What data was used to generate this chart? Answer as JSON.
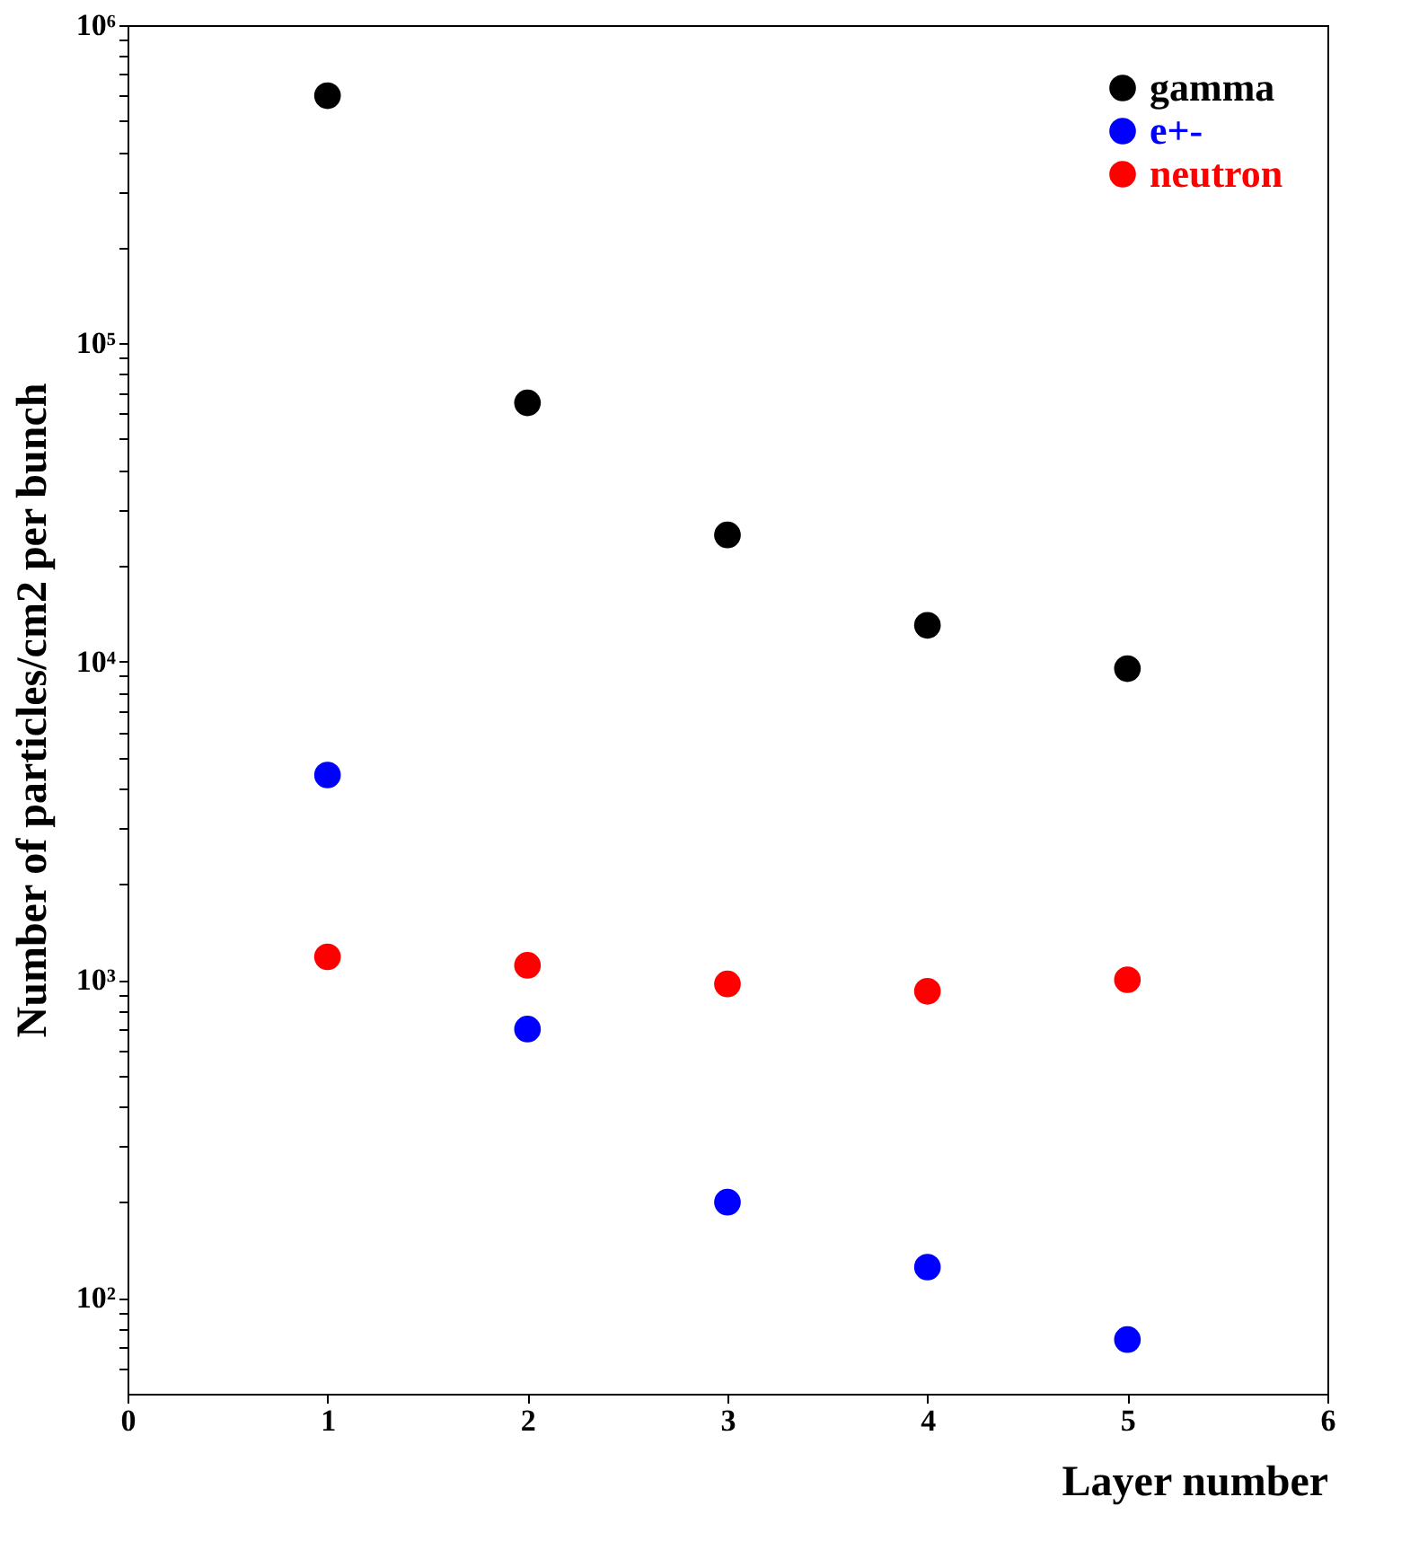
{
  "chart_data": {
    "type": "scatter",
    "xlabel": "Layer number",
    "ylabel": "Number of particles/cm2 per bunch",
    "x": [
      1,
      2,
      3,
      4,
      5
    ],
    "series": [
      {
        "name": "gamma",
        "color": "#000000",
        "values": [
          600000,
          65000,
          25000,
          13000,
          9500
        ]
      },
      {
        "name": "e+-",
        "color": "#0000ff",
        "values": [
          4400,
          700,
          200,
          125,
          74
        ]
      },
      {
        "name": "neutron",
        "color": "#ff0000",
        "values": [
          1180,
          1110,
          970,
          920,
          1000
        ]
      }
    ],
    "log": "y",
    "xlim": [
      0,
      6
    ],
    "xticks": [
      0,
      1,
      2,
      3,
      4,
      5,
      6
    ],
    "ylim": [
      50,
      1000000
    ],
    "yticks": [
      {
        "value": 60,
        "label": null
      },
      {
        "value": 70,
        "label": null
      },
      {
        "value": 80,
        "label": null
      },
      {
        "value": 90,
        "label": null
      },
      {
        "value": 100,
        "label": "10²"
      },
      {
        "value": 200,
        "label": null
      },
      {
        "value": 300,
        "label": null
      },
      {
        "value": 400,
        "label": null
      },
      {
        "value": 500,
        "label": null
      },
      {
        "value": 600,
        "label": null
      },
      {
        "value": 700,
        "label": null
      },
      {
        "value": 800,
        "label": null
      },
      {
        "value": 900,
        "label": null
      },
      {
        "value": 1000,
        "label": "10³"
      },
      {
        "value": 2000,
        "label": null
      },
      {
        "value": 3000,
        "label": null
      },
      {
        "value": 4000,
        "label": null
      },
      {
        "value": 5000,
        "label": null
      },
      {
        "value": 6000,
        "label": null
      },
      {
        "value": 7000,
        "label": null
      },
      {
        "value": 8000,
        "label": null
      },
      {
        "value": 9000,
        "label": null
      },
      {
        "value": 10000,
        "label": "10⁴"
      },
      {
        "value": 20000,
        "label": null
      },
      {
        "value": 30000,
        "label": null
      },
      {
        "value": 40000,
        "label": null
      },
      {
        "value": 50000,
        "label": null
      },
      {
        "value": 60000,
        "label": null
      },
      {
        "value": 70000,
        "label": null
      },
      {
        "value": 80000,
        "label": null
      },
      {
        "value": 90000,
        "label": null
      },
      {
        "value": 100000,
        "label": "10⁵"
      },
      {
        "value": 200000,
        "label": null
      },
      {
        "value": 300000,
        "label": null
      },
      {
        "value": 400000,
        "label": null
      },
      {
        "value": 500000,
        "label": null
      },
      {
        "value": 600000,
        "label": null
      },
      {
        "value": 700000,
        "label": null
      },
      {
        "value": 800000,
        "label": null
      },
      {
        "value": 900000,
        "label": null
      },
      {
        "value": 1000000,
        "label": "10⁶"
      }
    ],
    "grid": false,
    "legend": "top right",
    "marker": "circle"
  }
}
